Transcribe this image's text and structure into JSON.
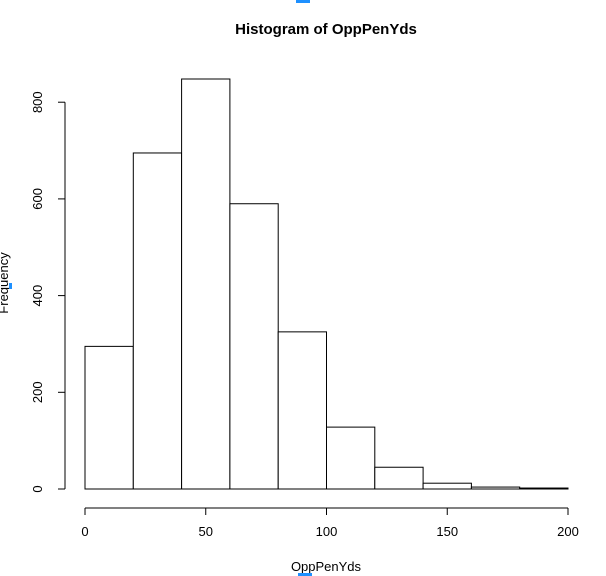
{
  "chart_data": {
    "type": "bar",
    "title": "Histogram of OppPenYds",
    "xlabel": "OppPenYds",
    "ylabel": "Frequency",
    "bins": [
      {
        "from": 0,
        "to": 20,
        "count": 295
      },
      {
        "from": 20,
        "to": 40,
        "count": 695
      },
      {
        "from": 40,
        "to": 60,
        "count": 848
      },
      {
        "from": 60,
        "to": 80,
        "count": 590
      },
      {
        "from": 80,
        "to": 100,
        "count": 325
      },
      {
        "from": 100,
        "to": 120,
        "count": 128
      },
      {
        "from": 120,
        "to": 140,
        "count": 45
      },
      {
        "from": 140,
        "to": 160,
        "count": 12
      },
      {
        "from": 160,
        "to": 180,
        "count": 4
      },
      {
        "from": 180,
        "to": 200,
        "count": 2
      }
    ],
    "xlim": [
      0,
      200
    ],
    "ylim": [
      0,
      848
    ],
    "xticks": [
      0,
      50,
      100,
      150,
      200
    ],
    "yticks": [
      0,
      200,
      400,
      600,
      800
    ],
    "grid": false
  },
  "colors": {
    "bar_fill": "#ffffff",
    "bar_stroke": "#000000",
    "marker": "#1e90ff"
  }
}
